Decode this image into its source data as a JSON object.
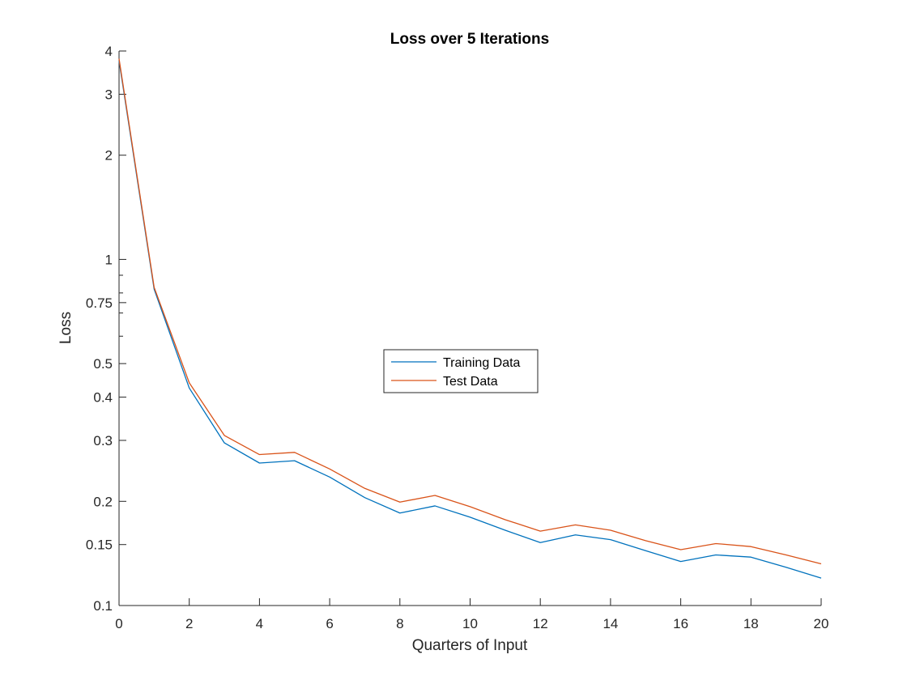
{
  "chart_data": {
    "type": "line",
    "title": "Loss over 5 Iterations",
    "xlabel": "Quarters of Input",
    "ylabel": "Loss",
    "xlim": [
      0,
      20
    ],
    "ylim": [
      0.1,
      4
    ],
    "yscale": "log",
    "grid": false,
    "legend_location": "center",
    "x": [
      0,
      1,
      2,
      3,
      4,
      5,
      6,
      7,
      8,
      9,
      10,
      11,
      12,
      13,
      14,
      15,
      16,
      17,
      18,
      19,
      20
    ],
    "xticks": [
      0,
      2,
      4,
      6,
      8,
      10,
      12,
      14,
      16,
      18,
      20
    ],
    "xtick_labels": [
      "0",
      "2",
      "4",
      "6",
      "8",
      "10",
      "12",
      "14",
      "16",
      "18",
      "20"
    ],
    "yticks": [
      0.1,
      0.15,
      0.2,
      0.3,
      0.4,
      0.5,
      0.75,
      1,
      2,
      3,
      4
    ],
    "ytick_labels": [
      "0.1",
      "0.15",
      "0.2",
      "0.3",
      "0.4",
      "0.5",
      "0.75",
      "1",
      "2",
      "3",
      "4"
    ],
    "series": [
      {
        "name": "Training Data",
        "color": "#0072BD",
        "values": [
          3.75,
          0.82,
          0.425,
          0.295,
          0.258,
          0.262,
          0.235,
          0.205,
          0.185,
          0.194,
          0.18,
          0.165,
          0.152,
          0.16,
          0.155,
          0.144,
          0.134,
          0.14,
          0.138,
          0.129,
          0.12
        ]
      },
      {
        "name": "Test Data",
        "color": "#D95319",
        "values": [
          3.8,
          0.83,
          0.44,
          0.31,
          0.273,
          0.277,
          0.248,
          0.218,
          0.199,
          0.208,
          0.193,
          0.177,
          0.164,
          0.171,
          0.165,
          0.154,
          0.145,
          0.151,
          0.148,
          0.14,
          0.132
        ]
      }
    ]
  }
}
